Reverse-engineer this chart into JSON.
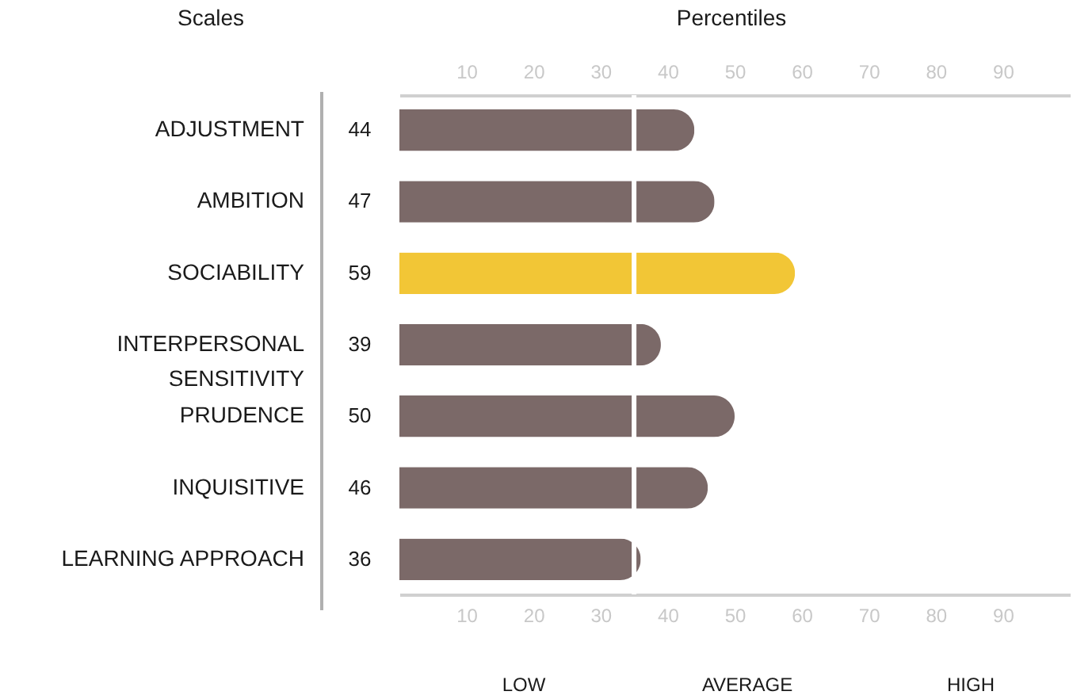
{
  "chart_data": {
    "type": "bar",
    "orientation": "horizontal",
    "title": "Percentiles",
    "ylabel": "Scales",
    "categories": [
      "ADJUSTMENT",
      "AMBITION",
      "SOCIABILITY",
      "INTERPERSONAL SENSITIVITY",
      "PRUDENCE",
      "INQUISITIVE",
      "LEARNING APPROACH"
    ],
    "values": [
      44,
      47,
      59,
      39,
      50,
      46,
      36
    ],
    "colors": [
      "#7b6968",
      "#7b6968",
      "#f2c636",
      "#7b6968",
      "#7b6968",
      "#7b6968",
      "#7b6968"
    ],
    "data_labels": true,
    "xlim": [
      0,
      100
    ],
    "xticks": [
      10,
      20,
      30,
      40,
      50,
      60,
      70,
      80,
      90
    ],
    "x2lim": [
      0,
      100
    ],
    "x2ticks": [
      10,
      20,
      30,
      40,
      50,
      60,
      70,
      80,
      90
    ],
    "ref_lines": [
      {
        "axis": "x",
        "value": 35,
        "color": "#ffffff"
      }
    ],
    "annotations": [
      "LOW",
      "AVERAGE",
      "HIGH"
    ],
    "grid": false
  }
}
